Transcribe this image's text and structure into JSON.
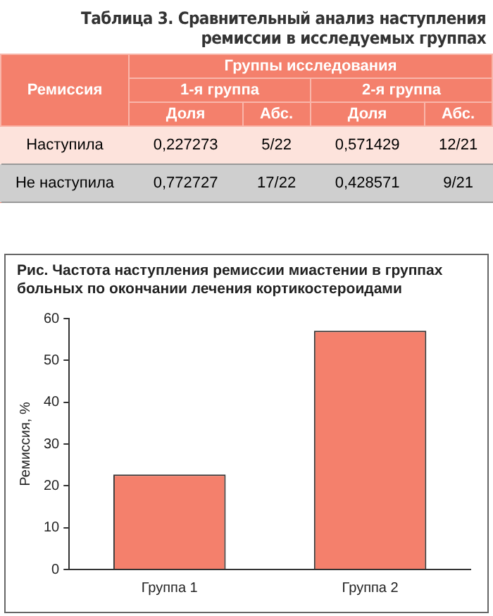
{
  "chart_data": [
    {
      "type": "other",
      "title": "Таблица 3. Сравнительный анализ наступления ремиссии в исследуемых группах",
      "annotations": [
        "Ремиссия",
        "Группы исследования",
        "1-я группа",
        "2-я группа",
        "Доля",
        "Абс.",
        "Доля",
        "Абс.",
        "Наступила",
        "0,227273",
        "5/22",
        "0,571429",
        "12/21",
        "Не наступила",
        "0,772727",
        "17/22",
        "0,428571",
        "9/21"
      ]
    },
    {
      "type": "bar",
      "title": "Рис. Частота наступления ремиссии миастении в группах больных по окончании лечения кортикостероидами",
      "ylabel": "Ремиссия, %",
      "categories": [
        "Группа 1",
        "Группа 2"
      ],
      "values": [
        22.7,
        57.1
      ],
      "color": "#f4806c",
      "ylim": [
        0,
        60
      ],
      "yticks": [
        0,
        10,
        20,
        30,
        40,
        50,
        60
      ],
      "grid": false,
      "legend": false
    }
  ]
}
